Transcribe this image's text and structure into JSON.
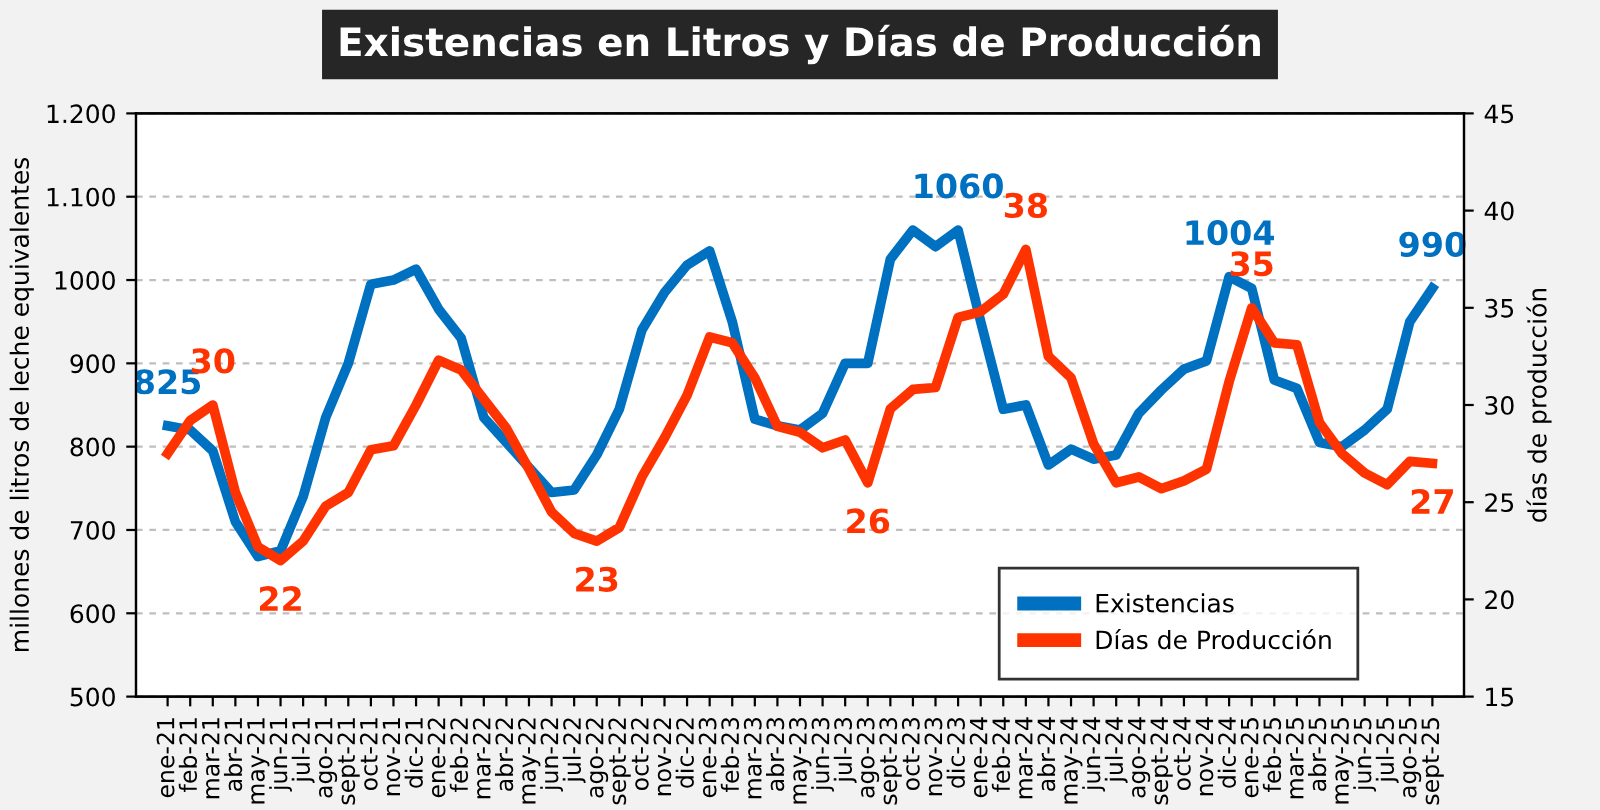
{
  "chart_data": {
    "type": "line",
    "title": "Existencias en Litros y Días de Producción",
    "ylabel": "millones de litros de leche equivalentes",
    "y2label": "días de producción",
    "categories": [
      "ene-21",
      "feb-21",
      "mar-21",
      "abr-21",
      "may-21",
      "jun-21",
      "jul-21",
      "ago-21",
      "sept-21",
      "oct-21",
      "nov-21",
      "dic-21",
      "ene-22",
      "feb-22",
      "mar-22",
      "abr-22",
      "may-22",
      "jun-22",
      "jul-22",
      "ago-22",
      "sept-22",
      "oct-22",
      "nov-22",
      "dic-22",
      "ene-23",
      "feb-23",
      "mar-23",
      "abr-23",
      "may-23",
      "jun-23",
      "jul-23",
      "ago-23",
      "sept-23",
      "oct-23",
      "nov-23",
      "dic-23",
      "ene-24",
      "feb-24",
      "mar-24",
      "abr-24",
      "may-24",
      "jun-24",
      "jul-24",
      "ago-24",
      "sept-24",
      "oct-24",
      "nov-24",
      "dic-24",
      "ene-25",
      "feb-25",
      "mar-25",
      "abr-25",
      "may-25",
      "jun-25",
      "jul-25",
      "ago-25",
      "sept-25"
    ],
    "series": [
      {
        "name": "Existencias",
        "color": "#0070c0",
        "values": [
          825,
          820,
          795,
          710,
          668,
          675,
          740,
          835,
          900,
          995,
          1000,
          1013,
          965,
          930,
          835,
          805,
          775,
          745,
          748,
          790,
          845,
          940,
          985,
          1018,
          1035,
          950,
          833,
          825,
          820,
          840,
          900,
          900,
          1025,
          1060,
          1040,
          1060,
          950,
          845,
          850,
          778,
          797,
          785,
          790,
          840,
          868,
          893,
          903,
          1004,
          990,
          880,
          870,
          805,
          800,
          820,
          845,
          950,
          990
        ],
        "value_labels": [
          "825",
          null,
          null,
          null,
          null,
          null,
          null,
          null,
          null,
          null,
          null,
          null,
          null,
          null,
          null,
          null,
          null,
          null,
          null,
          null,
          null,
          null,
          null,
          null,
          null,
          null,
          null,
          null,
          null,
          null,
          null,
          null,
          null,
          null,
          null,
          "1060",
          null,
          null,
          null,
          null,
          null,
          null,
          null,
          null,
          null,
          null,
          null,
          "1004",
          null,
          null,
          null,
          null,
          null,
          null,
          null,
          null,
          "990"
        ]
      },
      {
        "name": "Días de Producción",
        "color": "#ff3300",
        "axis": "y2",
        "values": [
          27.5,
          29.2,
          30,
          25.5,
          22.7,
          22,
          23,
          24.8,
          25.5,
          27.7,
          27.9,
          30,
          32.3,
          31.8,
          30.3,
          28.8,
          26.7,
          24.5,
          23.4,
          23,
          23.7,
          26.3,
          28.3,
          30.5,
          33.5,
          33.2,
          31.4,
          28.9,
          28.6,
          27.8,
          28.2,
          26,
          29.8,
          30.8,
          30.9,
          34.5,
          34.8,
          35.7,
          38,
          32.5,
          31.4,
          28,
          26,
          26.3,
          25.7,
          26.1,
          26.7,
          31.2,
          35,
          33.2,
          33.1,
          29.1,
          27.5,
          26.5,
          25.9,
          27.1,
          27
        ],
        "value_labels": [
          null,
          null,
          "30",
          null,
          null,
          "22",
          null,
          null,
          null,
          null,
          null,
          null,
          null,
          null,
          null,
          null,
          null,
          null,
          null,
          "23",
          null,
          null,
          null,
          null,
          null,
          null,
          null,
          null,
          null,
          null,
          null,
          "26",
          null,
          null,
          null,
          null,
          null,
          null,
          "38",
          null,
          null,
          null,
          null,
          null,
          null,
          null,
          null,
          null,
          "35",
          null,
          null,
          null,
          null,
          null,
          null,
          null,
          "27"
        ]
      }
    ],
    "ylim": [
      500,
      1200
    ],
    "yticks": [
      500,
      600,
      700,
      800,
      900,
      1000,
      {
        "value": 1100,
        "label": "1.100"
      },
      {
        "value": 1200,
        "label": "1.200"
      }
    ],
    "y2lim": [
      15,
      45
    ],
    "y2ticks": [
      15,
      20,
      25,
      30,
      35,
      40,
      45
    ],
    "grid": "y",
    "line_style": "solid",
    "marker": "none",
    "legend": "bottom right"
  }
}
